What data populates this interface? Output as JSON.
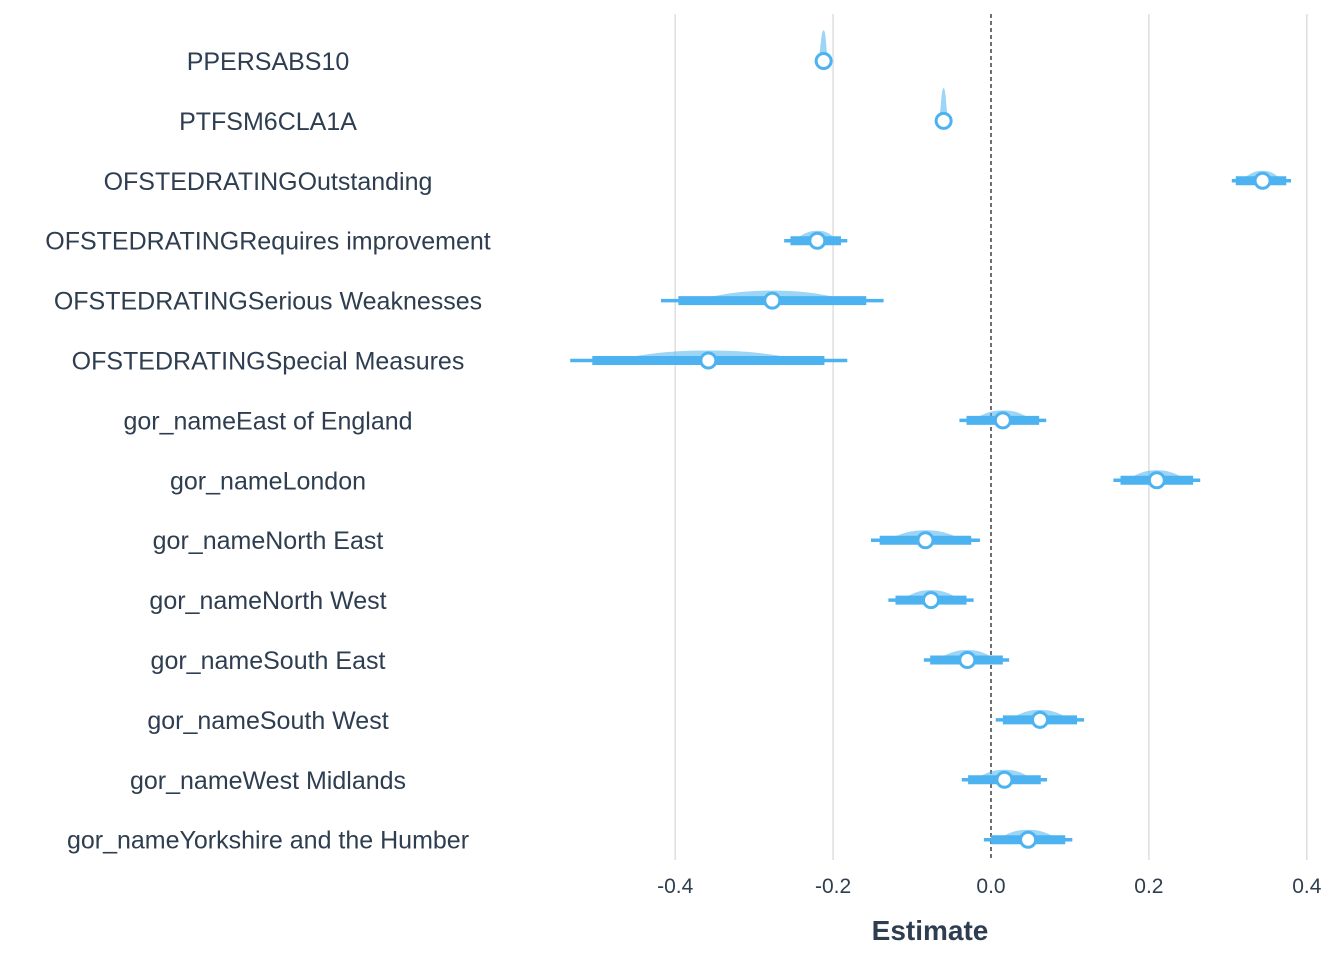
{
  "chart_data": {
    "type": "scatter",
    "subtype": "coefficient-plot-with-interval-eyes",
    "xlabel": "Estimate",
    "xlim": [
      -0.56,
      0.42
    ],
    "xticks": [
      -0.4,
      -0.2,
      0.0,
      0.2,
      0.4
    ],
    "xtick_labels": [
      "-0.4",
      "-0.2",
      "0.0",
      "0.2",
      "0.4"
    ],
    "reference_line": 0,
    "grid": "vertical major",
    "color": "#4db3f0",
    "point_fill": "#ffffff",
    "terms": [
      {
        "label": "PPERSABS10",
        "estimate": -0.212,
        "inner": [
          -0.217,
          -0.208
        ],
        "outer": [
          -0.22,
          -0.205
        ]
      },
      {
        "label": "PTFSM6CLA1A",
        "estimate": -0.06,
        "inner": [
          -0.064,
          -0.056
        ],
        "outer": [
          -0.067,
          -0.053
        ]
      },
      {
        "label": "OFSTEDRATINGOutstanding",
        "estimate": 0.344,
        "inner": [
          0.31,
          0.374
        ],
        "outer": [
          0.305,
          0.38
        ]
      },
      {
        "label": "OFSTEDRATINGRequires improvement",
        "estimate": -0.22,
        "inner": [
          -0.254,
          -0.19
        ],
        "outer": [
          -0.262,
          -0.182
        ]
      },
      {
        "label": "OFSTEDRATINGSerious Weaknesses",
        "estimate": -0.277,
        "inner": [
          -0.396,
          -0.158
        ],
        "outer": [
          -0.418,
          -0.136
        ]
      },
      {
        "label": "OFSTEDRATINGSpecial Measures",
        "estimate": -0.358,
        "inner": [
          -0.505,
          -0.211
        ],
        "outer": [
          -0.533,
          -0.182
        ]
      },
      {
        "label": "gor_nameEast of England",
        "estimate": 0.015,
        "inner": [
          -0.031,
          0.061
        ],
        "outer": [
          -0.04,
          0.07
        ]
      },
      {
        "label": "gor_nameLondon",
        "estimate": 0.21,
        "inner": [
          0.164,
          0.256
        ],
        "outer": [
          0.155,
          0.265
        ]
      },
      {
        "label": "gor_nameNorth East",
        "estimate": -0.083,
        "inner": [
          -0.141,
          -0.025
        ],
        "outer": [
          -0.152,
          -0.014
        ]
      },
      {
        "label": "gor_nameNorth West",
        "estimate": -0.076,
        "inner": [
          -0.121,
          -0.031
        ],
        "outer": [
          -0.13,
          -0.022
        ]
      },
      {
        "label": "gor_nameSouth East",
        "estimate": -0.03,
        "inner": [
          -0.077,
          0.015
        ],
        "outer": [
          -0.085,
          0.023
        ]
      },
      {
        "label": "gor_nameSouth West",
        "estimate": 0.062,
        "inner": [
          0.015,
          0.109
        ],
        "outer": [
          0.006,
          0.118
        ]
      },
      {
        "label": "gor_nameWest Midlands",
        "estimate": 0.017,
        "inner": [
          -0.029,
          0.063
        ],
        "outer": [
          -0.037,
          0.071
        ]
      },
      {
        "label": "gor_nameYorkshire and the Humber",
        "estimate": 0.047,
        "inner": [
          0.0,
          0.094
        ],
        "outer": [
          -0.009,
          0.103
        ]
      }
    ]
  }
}
